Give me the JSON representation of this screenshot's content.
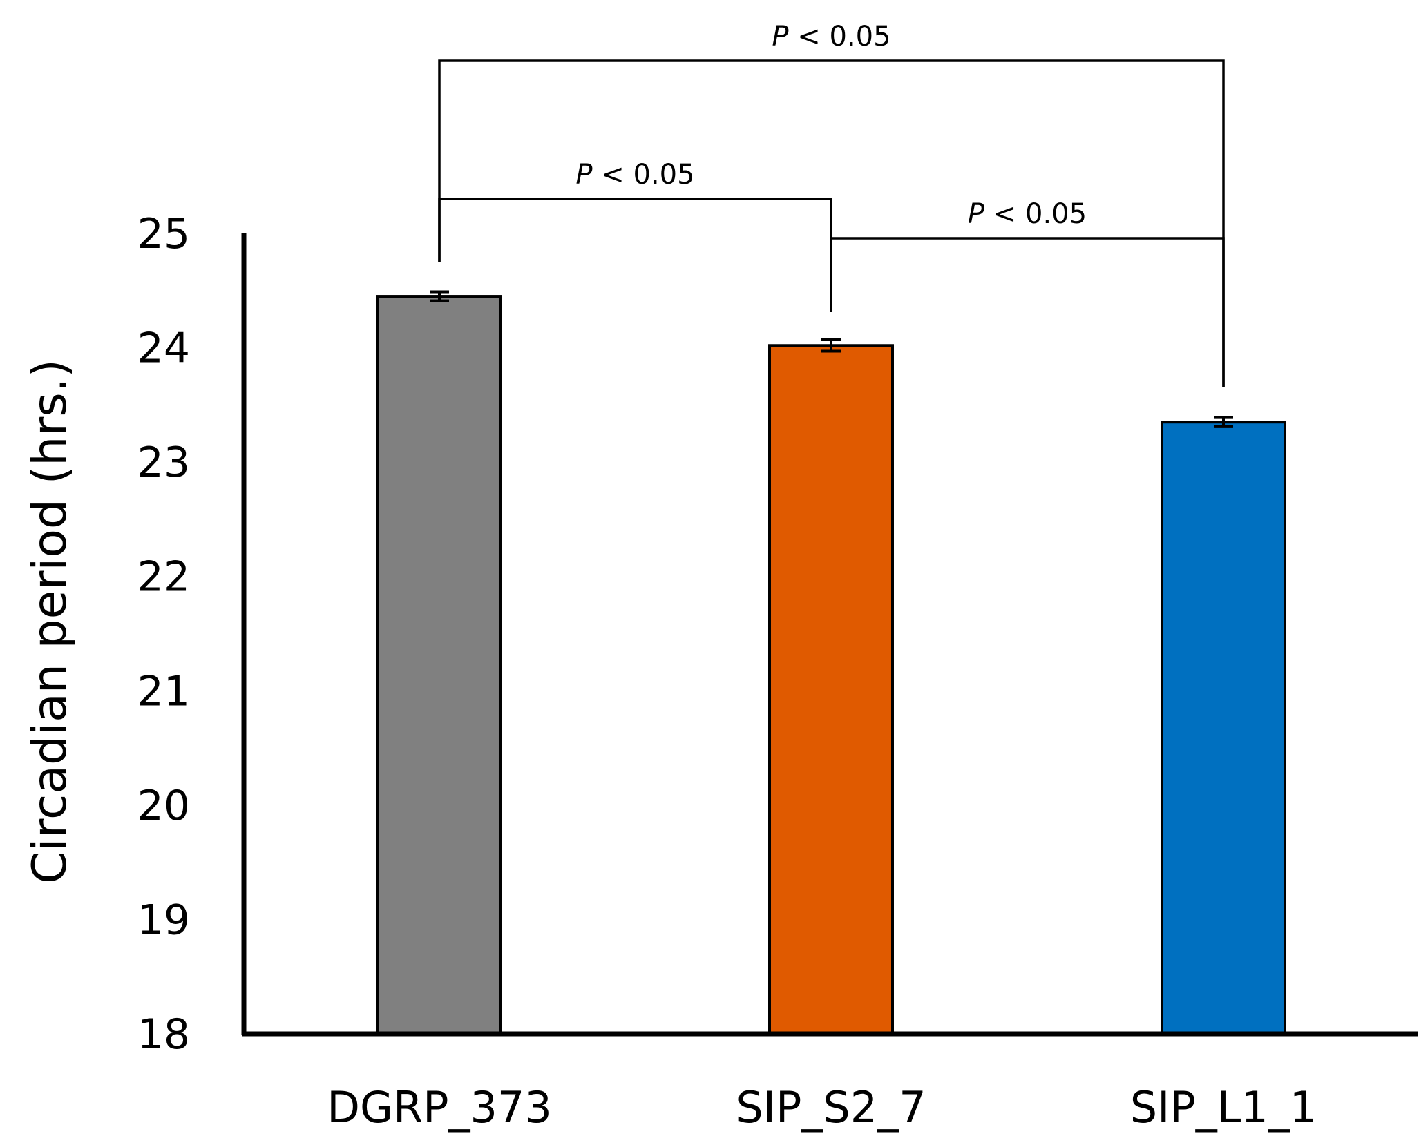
{
  "chart_data": {
    "type": "bar",
    "title": "",
    "xlabel": "",
    "ylabel": "Circadian period (hrs.)",
    "ylim": [
      18,
      25
    ],
    "yticks": [
      18,
      19,
      20,
      21,
      22,
      23,
      24,
      25
    ],
    "grid": false,
    "categories": [
      "DGRP_373",
      "SIP_S2_7",
      "SIP_L1_1"
    ],
    "values": [
      24.45,
      24.02,
      23.35
    ],
    "errors": [
      0.04,
      0.05,
      0.04
    ],
    "colors": [
      "#808080",
      "#E05A00",
      "#0070C0"
    ],
    "comparisons": [
      {
        "from": 0,
        "to": 2,
        "label_p": "P",
        "label_rest": " < 0.05",
        "level": 2
      },
      {
        "from": 0,
        "to": 1,
        "label_p": "P",
        "label_rest": " < 0.05",
        "level": 1
      },
      {
        "from": 1,
        "to": 2,
        "label_p": "P",
        "label_rest": " < 0.05",
        "level": 0
      }
    ]
  }
}
